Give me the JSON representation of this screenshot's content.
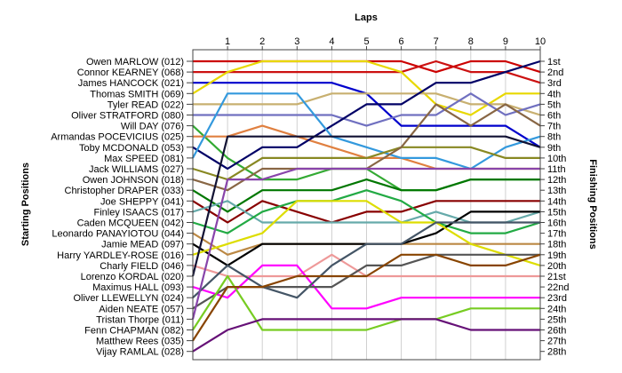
{
  "chart_data": {
    "type": "line",
    "title": "",
    "xlabel": "Laps",
    "ylabel_left": "Starting Positions",
    "ylabel_right": "Finishing Positions",
    "x": [
      0,
      1,
      2,
      3,
      4,
      5,
      6,
      7,
      8,
      9,
      10
    ],
    "x_tick_labels": [
      "1",
      "2",
      "3",
      "4",
      "5",
      "6",
      "7",
      "8",
      "9",
      "10"
    ],
    "y_inverted": true,
    "ylim": [
      1,
      28
    ],
    "grid": true,
    "finishing_labels": [
      "1st",
      "2nd",
      "3rd",
      "4th",
      "5th",
      "6th",
      "7th",
      "8th",
      "9th",
      "10th",
      "11th",
      "12th",
      "13th",
      "14th",
      "15th",
      "16th",
      "17th",
      "18th",
      "19th",
      "20th",
      "21st",
      "22nd",
      "23rd",
      "24th",
      "25th",
      "26th",
      "27th",
      "28th"
    ],
    "series": [
      {
        "name": "Owen MARLOW (012)",
        "color": "#cc0000",
        "values": [
          1,
          1,
          1,
          1,
          1,
          1,
          1,
          2,
          1,
          1,
          2
        ]
      },
      {
        "name": "Connor KEARNEY (068)",
        "color": "#cc1111",
        "values": [
          2,
          2,
          2,
          2,
          2,
          2,
          2,
          1,
          2,
          2,
          3
        ]
      },
      {
        "name": "James HANCOCK (021)",
        "color": "#0000cc",
        "values": [
          3,
          3,
          3,
          3,
          3,
          4,
          7,
          7,
          7,
          7,
          9
        ]
      },
      {
        "name": "Thomas SMITH (069)",
        "color": "#e8d800",
        "values": [
          4,
          2,
          1,
          1,
          1,
          1,
          2,
          5,
          6,
          4,
          4
        ]
      },
      {
        "name": "Tyler READ (022)",
        "color": "#c8b070",
        "values": [
          5,
          5,
          5,
          5,
          4,
          4,
          4,
          4,
          5,
          5,
          6
        ]
      },
      {
        "name": "Oliver STRATFORD (080)",
        "color": "#7070c0",
        "values": [
          6,
          6,
          6,
          6,
          6,
          7,
          6,
          6,
          4,
          6,
          5
        ]
      },
      {
        "name": "Will DAY (076)",
        "color": "#33aa33",
        "values": [
          7,
          10,
          12,
          12,
          11,
          11,
          13,
          13,
          12,
          12,
          12
        ]
      },
      {
        "name": "Armandas POCEVICIUS (025)",
        "color": "#e08040",
        "values": [
          8,
          8,
          7,
          8,
          9,
          10,
          10,
          11,
          11,
          11,
          11
        ]
      },
      {
        "name": "Toby MCDONALD (053)",
        "color": "#000066",
        "values": [
          9,
          11,
          9,
          9,
          7,
          5,
          5,
          3,
          3,
          2,
          1
        ]
      },
      {
        "name": "Max SPEED (081)",
        "color": "#3399dd",
        "values": [
          10,
          4,
          4,
          4,
          8,
          9,
          10,
          10,
          11,
          9,
          8
        ]
      },
      {
        "name": "Jack WILLIAMS (027)",
        "color": "#888822",
        "values": [
          11,
          12,
          10,
          10,
          10,
          10,
          9,
          9,
          9,
          10,
          10
        ]
      },
      {
        "name": "Owen JOHNSON (018)",
        "color": "#886644",
        "values": [
          12,
          13,
          11,
          11,
          11,
          11,
          9,
          5,
          7,
          5,
          7
        ]
      },
      {
        "name": "Christopher DRAPER (033)",
        "color": "#007700",
        "values": [
          13,
          15,
          13,
          13,
          13,
          12,
          13,
          13,
          12,
          12,
          12
        ]
      },
      {
        "name": "Joe SHEPPY (041)",
        "color": "#880000",
        "values": [
          14,
          16,
          14,
          15,
          16,
          15,
          15,
          14,
          14,
          14,
          14
        ]
      },
      {
        "name": "Finley ISAACS (017)",
        "color": "#66aaaa",
        "values": [
          15,
          14,
          16,
          16,
          16,
          16,
          16,
          15,
          16,
          16,
          15
        ]
      },
      {
        "name": "Caden MCQUEEN (042)",
        "color": "#22aa44",
        "values": [
          16,
          17,
          15,
          14,
          14,
          13,
          14,
          16,
          17,
          17,
          16
        ]
      },
      {
        "name": "Leonardo PANAYIOTOU (044)",
        "color": "#bb8844",
        "values": [
          17,
          19,
          18,
          18,
          18,
          18,
          18,
          18,
          18,
          18,
          18
        ]
      },
      {
        "name": "Jamie MEAD (097)",
        "color": "#000000",
        "values": [
          18,
          20,
          18,
          18,
          18,
          18,
          18,
          17,
          15,
          15,
          15
        ]
      },
      {
        "name": "Harry YARDLEY-ROSE (016)",
        "color": "#dddd00",
        "values": [
          19,
          18,
          17,
          14,
          14,
          14,
          16,
          16,
          18,
          19,
          20
        ]
      },
      {
        "name": "Charly FIELD (046)",
        "color": "#ee9999",
        "values": [
          20,
          21,
          21,
          21,
          19,
          21,
          21,
          21,
          21,
          21,
          21
        ]
      },
      {
        "name": "Lorenzo KORDAL (020)",
        "color": "#111133",
        "values": [
          21,
          8,
          8,
          8,
          8,
          8,
          8,
          8,
          8,
          8,
          9
        ]
      },
      {
        "name": "Maximus HALL (093)",
        "color": "#ff00ff",
        "values": [
          22,
          23,
          20,
          20,
          24,
          24,
          23,
          23,
          23,
          23,
          23
        ]
      },
      {
        "name": "Oliver LLEWELLYN (024)",
        "color": "#445566",
        "values": [
          23,
          20,
          22,
          23,
          20,
          18,
          18,
          16,
          16,
          16,
          16
        ]
      },
      {
        "name": "Aiden NEATE (057)",
        "color": "#555555",
        "values": [
          24,
          22,
          22,
          22,
          22,
          20,
          20,
          19,
          19,
          19,
          19
        ]
      },
      {
        "name": "Tristan Thorpe (011)",
        "color": "#8844aa",
        "values": [
          25,
          12,
          12,
          11,
          11,
          11,
          11,
          11,
          11,
          11,
          11
        ]
      },
      {
        "name": "Fenn CHAPMAN (082)",
        "color": "#77cc22",
        "values": [
          26,
          21,
          26,
          26,
          26,
          26,
          25,
          25,
          24,
          24,
          24
        ]
      },
      {
        "name": "Matthew Rees (035)",
        "color": "#884400",
        "values": [
          27,
          22,
          22,
          21,
          21,
          21,
          19,
          19,
          20,
          20,
          19
        ]
      },
      {
        "name": "Vijay RAMLAL (028)",
        "color": "#661177",
        "values": [
          28,
          26,
          25,
          25,
          25,
          25,
          25,
          25,
          26,
          26,
          26
        ]
      }
    ]
  }
}
